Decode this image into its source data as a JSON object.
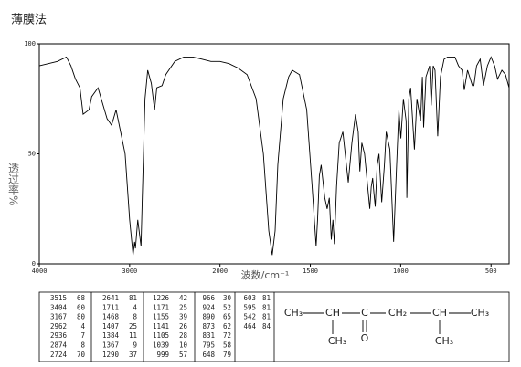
{
  "chart_data": {
    "type": "line",
    "title": "薄膜法",
    "x_label": "波数/cm⁻¹",
    "y_label": "透过率%",
    "xlim": [
      4000,
      400
    ],
    "xticks": [
      4000,
      3000,
      2000,
      1500,
      1000,
      500
    ],
    "ylim": [
      0,
      100
    ],
    "yticks": [
      0,
      50,
      100
    ],
    "color": "#000000",
    "x": [
      4000,
      3900,
      3800,
      3700,
      3650,
      3600,
      3550,
      3515,
      3450,
      3420,
      3350,
      3250,
      3200,
      3150,
      3100,
      3050,
      3000,
      2962,
      2945,
      2936,
      2910,
      2874,
      2860,
      2830,
      2800,
      2760,
      2724,
      2700,
      2641,
      2600,
      2500,
      2400,
      2300,
      2200,
      2100,
      2000,
      1950,
      1900,
      1850,
      1800,
      1760,
      1730,
      1711,
      1695,
      1680,
      1650,
      1620,
      1600,
      1560,
      1520,
      1490,
      1468,
      1460,
      1450,
      1440,
      1420,
      1407,
      1395,
      1384,
      1375,
      1367,
      1355,
      1340,
      1320,
      1290,
      1270,
      1250,
      1235,
      1226,
      1215,
      1200,
      1171,
      1163,
      1155,
      1148,
      1141,
      1130,
      1120,
      1105,
      1090,
      1080,
      1060,
      1039,
      1025,
      1010,
      999,
      985,
      970,
      966,
      955,
      945,
      924,
      910,
      890,
      880,
      873,
      860,
      840,
      831,
      820,
      810,
      795,
      780,
      760,
      740,
      700,
      680,
      660,
      648,
      630,
      603,
      595,
      580,
      560,
      542,
      520,
      500,
      480,
      464,
      440,
      420,
      400
    ],
    "values": [
      90,
      91,
      92,
      94,
      90,
      84,
      80,
      68,
      70,
      76,
      80,
      66,
      63,
      70,
      60,
      50,
      20,
      4,
      10,
      7,
      20,
      8,
      30,
      75,
      88,
      82,
      70,
      80,
      81,
      86,
      92,
      94,
      94,
      93,
      92,
      92,
      91,
      89,
      86,
      75,
      50,
      15,
      4,
      15,
      45,
      75,
      85,
      88,
      86,
      70,
      35,
      8,
      20,
      40,
      45,
      30,
      25,
      30,
      11,
      20,
      9,
      35,
      55,
      60,
      37,
      55,
      68,
      60,
      42,
      55,
      50,
      25,
      35,
      39,
      32,
      26,
      45,
      50,
      28,
      45,
      60,
      52,
      10,
      40,
      70,
      57,
      75,
      65,
      30,
      75,
      80,
      52,
      75,
      65,
      85,
      62,
      85,
      90,
      72,
      90,
      88,
      58,
      85,
      93,
      94,
      94,
      90,
      88,
      79,
      88,
      81,
      81,
      90,
      93,
      81,
      90,
      94,
      90,
      84,
      88,
      86,
      80
    ]
  },
  "peak_table": {
    "columns": [
      [
        [
          3515,
          68
        ],
        [
          3404,
          60
        ],
        [
          3167,
          80
        ],
        [
          2962,
          4
        ],
        [
          2936,
          7
        ],
        [
          2874,
          8
        ],
        [
          2724,
          70
        ]
      ],
      [
        [
          2641,
          81
        ],
        [
          1711,
          4
        ],
        [
          1468,
          8
        ],
        [
          1407,
          25
        ],
        [
          1384,
          11
        ],
        [
          1367,
          9
        ],
        [
          1290,
          37
        ]
      ],
      [
        [
          1226,
          42
        ],
        [
          1171,
          25
        ],
        [
          1155,
          39
        ],
        [
          1141,
          26
        ],
        [
          1105,
          28
        ],
        [
          1039,
          10
        ],
        [
          999,
          57
        ]
      ],
      [
        [
          966,
          30
        ],
        [
          924,
          52
        ],
        [
          890,
          65
        ],
        [
          873,
          62
        ],
        [
          831,
          72
        ],
        [
          795,
          58
        ],
        [
          648,
          79
        ]
      ],
      [
        [
          603,
          81
        ],
        [
          595,
          81
        ],
        [
          542,
          81
        ],
        [
          464,
          84
        ]
      ]
    ]
  },
  "structure": {
    "atoms": [
      "CH₃",
      "CH",
      "C",
      "CH₂",
      "CH",
      "CH₃",
      "CH₃",
      "O",
      "CH₃"
    ]
  }
}
